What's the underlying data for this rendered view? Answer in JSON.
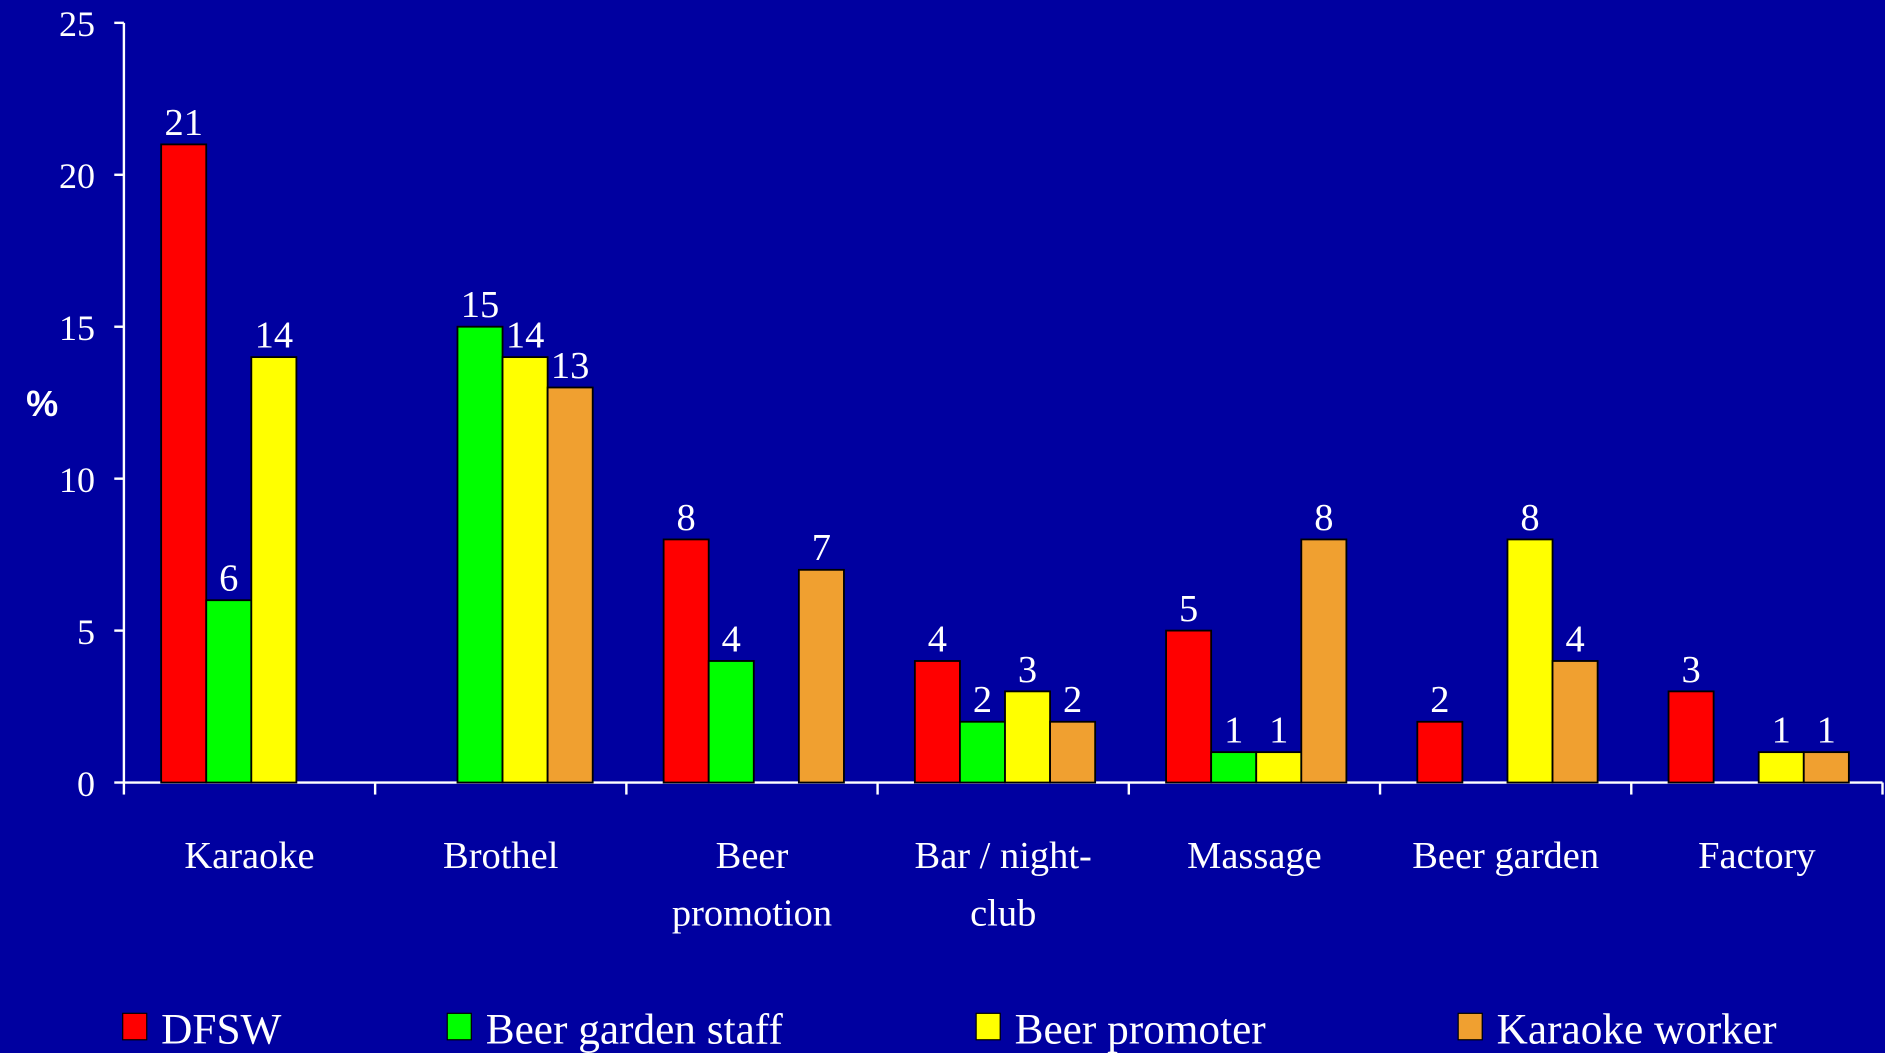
{
  "chart_data": {
    "type": "bar",
    "y_label": "%",
    "categories": [
      [
        "Karaoke"
      ],
      [
        "Brothel"
      ],
      [
        "Beer",
        "promotion"
      ],
      [
        "Bar / night-",
        "club"
      ],
      [
        "Massage"
      ],
      [
        "Beer garden"
      ],
      [
        "Factory"
      ]
    ],
    "series": [
      {
        "name": "DFSW",
        "color": "#ff0000",
        "values": [
          21,
          null,
          8,
          4,
          5,
          2,
          3
        ]
      },
      {
        "name": "Beer garden staff",
        "color": "#00ff00",
        "values": [
          6,
          15,
          4,
          2,
          1,
          null,
          null
        ]
      },
      {
        "name": "Beer promoter",
        "color": "#ffff00",
        "values": [
          14,
          14,
          null,
          3,
          1,
          8,
          1
        ]
      },
      {
        "name": "Karaoke worker",
        "color": "#f0a030",
        "values": [
          null,
          13,
          7,
          2,
          8,
          4,
          1
        ]
      }
    ],
    "ylim": [
      0,
      25
    ],
    "yticks": [
      0,
      5,
      10,
      15,
      20,
      25
    ]
  }
}
